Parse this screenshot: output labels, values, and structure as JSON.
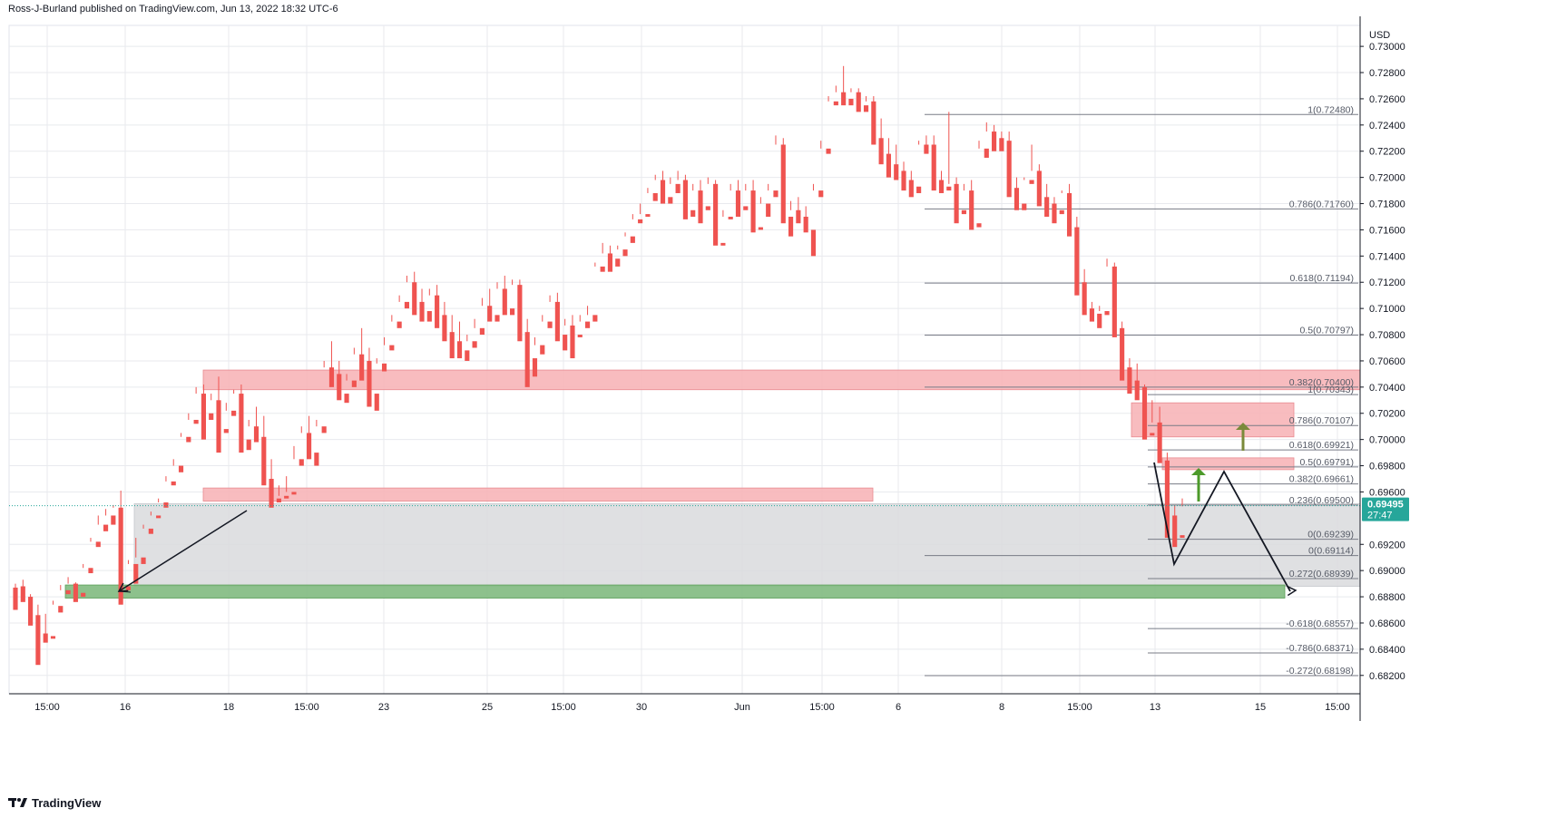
{
  "header": {
    "publisher": "Ross-J-Burland published on TradingView.com, Jun 13, 2022 18:32 UTC-6"
  },
  "footer": {
    "brand": "TradingView",
    "logo_icon": "tradingview-logo-icon"
  },
  "colors": {
    "up": "#26a69a",
    "down": "#ef5350",
    "zone_red": "#f7b5b8",
    "zone_green": "#81ba7f",
    "zone_grey": "#d9dadd",
    "fib_line": "#787b86",
    "price_label_bg": "#26a69a",
    "arrow_green": "#4c9a2a"
  },
  "chart_data": {
    "type": "candlestick",
    "symbol_currency": "USD",
    "title": "",
    "ylim": [
      0.6806,
      0.7316
    ],
    "yticks": [
      "0.73000",
      "0.72800",
      "0.72600",
      "0.72400",
      "0.72200",
      "0.72000",
      "0.71800",
      "0.71600",
      "0.71400",
      "0.71200",
      "0.71000",
      "0.70800",
      "0.70600",
      "0.70400",
      "0.70200",
      "0.70000",
      "0.69800",
      "0.69600",
      "0.69200",
      "0.69000",
      "0.68800",
      "0.68600",
      "0.68400",
      "0.68200"
    ],
    "xticks": [
      "15:00",
      "16",
      "18",
      "15:00",
      "23",
      "25",
      "15:00",
      "30",
      "Jun",
      "15:00",
      "6",
      "8",
      "15:00",
      "13",
      "15",
      "15:00"
    ],
    "current_price": {
      "price": "0.69495",
      "countdown": "27:47"
    },
    "fib_levels": [
      {
        "label": "1(0.72480)",
        "price": 0.7248
      },
      {
        "label": "0.786(0.71760)",
        "price": 0.7176
      },
      {
        "label": "0.618(0.71194)",
        "price": 0.71194
      },
      {
        "label": "0.5(0.70797)",
        "price": 0.70797
      },
      {
        "label": "0.382(0.70400)",
        "price": 0.704
      },
      {
        "label": "1(0.70343)",
        "price": 0.70343
      },
      {
        "label": "0.786(0.70107)",
        "price": 0.70107
      },
      {
        "label": "0.618(0.69921)",
        "price": 0.69921
      },
      {
        "label": "0.5(0.69791)",
        "price": 0.69791
      },
      {
        "label": "0.382(0.69661)",
        "price": 0.69661
      },
      {
        "label": "0.236(0.69500)",
        "price": 0.695
      },
      {
        "label": "0(0.69239)",
        "price": 0.69239
      },
      {
        "label": "0(0.69114)",
        "price": 0.69114
      },
      {
        "label": "0.272(0.68939)",
        "price": 0.68939
      },
      {
        "label": "-0.618(0.68557)",
        "price": 0.68557
      },
      {
        "label": "-0.786(0.68371)",
        "price": 0.68371
      },
      {
        "label": "-0.272(0.68198)",
        "price": 0.68198
      }
    ],
    "zones": [
      {
        "kind": "resistance",
        "top": 0.7053,
        "bottom": 0.7038
      },
      {
        "kind": "support",
        "top": 0.6963,
        "bottom": 0.6953
      },
      {
        "kind": "range",
        "top": 0.6951,
        "bottom": 0.6888
      },
      {
        "kind": "support-strong",
        "top": 0.6889,
        "bottom": 0.6879
      },
      {
        "kind": "resistance-upper",
        "top": 0.7028,
        "bottom": 0.7002
      },
      {
        "kind": "resistance-lower",
        "top": 0.6986,
        "bottom": 0.6977
      }
    ],
    "candles": [
      [
        0.6887,
        0.689,
        0.6872,
        0.687
      ],
      [
        0.6888,
        0.6893,
        0.6878,
        0.6876
      ],
      [
        0.688,
        0.6882,
        0.6866,
        0.6858
      ],
      [
        0.6866,
        0.6874,
        0.6852,
        0.6828
      ],
      [
        0.6852,
        0.6867,
        0.685,
        0.6845
      ],
      [
        0.685,
        0.6877,
        0.6874,
        0.6848
      ],
      [
        0.6873,
        0.6889,
        0.6885,
        0.6868
      ],
      [
        0.6885,
        0.6895,
        0.689,
        0.6882
      ],
      [
        0.689,
        0.6891,
        0.6883,
        0.6876
      ],
      [
        0.6883,
        0.6905,
        0.6902,
        0.688
      ],
      [
        0.6902,
        0.6925,
        0.6922,
        0.6898
      ],
      [
        0.6922,
        0.6942,
        0.6935,
        0.6918
      ],
      [
        0.6935,
        0.6947,
        0.6942,
        0.693
      ],
      [
        0.6942,
        0.695,
        0.6948,
        0.6935
      ],
      [
        0.6948,
        0.6961,
        0.6888,
        0.6874
      ],
      [
        0.6888,
        0.6908,
        0.6905,
        0.6885
      ],
      [
        0.6905,
        0.6925,
        0.691,
        0.689
      ],
      [
        0.691,
        0.6935,
        0.6932,
        0.6905
      ],
      [
        0.6932,
        0.6945,
        0.6942,
        0.6928
      ],
      [
        0.6942,
        0.6955,
        0.6952,
        0.694
      ],
      [
        0.6952,
        0.6972,
        0.6968,
        0.6948
      ],
      [
        0.6968,
        0.6985,
        0.698,
        0.6965
      ],
      [
        0.698,
        0.7005,
        0.7002,
        0.6975
      ],
      [
        0.7002,
        0.702,
        0.7015,
        0.6998
      ],
      [
        0.7015,
        0.704,
        0.7035,
        0.7012
      ],
      [
        0.7035,
        0.7042,
        0.702,
        0.7
      ],
      [
        0.702,
        0.7035,
        0.703,
        0.7015
      ],
      [
        0.703,
        0.7048,
        0.7008,
        0.699
      ],
      [
        0.7008,
        0.7028,
        0.7022,
        0.7005
      ],
      [
        0.7022,
        0.7038,
        0.7035,
        0.7018
      ],
      [
        0.7035,
        0.7042,
        0.7,
        0.699
      ],
      [
        0.7,
        0.7015,
        0.701,
        0.6992
      ],
      [
        0.701,
        0.7025,
        0.7002,
        0.6998
      ],
      [
        0.7002,
        0.7018,
        0.697,
        0.6965
      ],
      [
        0.697,
        0.6985,
        0.6955,
        0.6948
      ],
      [
        0.6955,
        0.6965,
        0.6957,
        0.6952
      ],
      [
        0.6957,
        0.6972,
        0.696,
        0.6955
      ],
      [
        0.696,
        0.6995,
        0.6985,
        0.6958
      ],
      [
        0.6985,
        0.701,
        0.7005,
        0.698
      ],
      [
        0.7005,
        0.7018,
        0.699,
        0.6985
      ],
      [
        0.699,
        0.7015,
        0.701,
        0.698
      ],
      [
        0.701,
        0.706,
        0.7055,
        0.7005
      ],
      [
        0.7055,
        0.7075,
        0.705,
        0.704
      ],
      [
        0.705,
        0.706,
        0.7035,
        0.703
      ],
      [
        0.7035,
        0.705,
        0.7045,
        0.7028
      ],
      [
        0.7045,
        0.707,
        0.7065,
        0.704
      ],
      [
        0.7065,
        0.7085,
        0.706,
        0.7045
      ],
      [
        0.706,
        0.707,
        0.7035,
        0.7025
      ],
      [
        0.7035,
        0.7062,
        0.7058,
        0.7022
      ],
      [
        0.7058,
        0.7078,
        0.7072,
        0.7052
      ],
      [
        0.7072,
        0.7095,
        0.709,
        0.7068
      ],
      [
        0.709,
        0.711,
        0.7105,
        0.7085
      ],
      [
        0.7105,
        0.7125,
        0.712,
        0.71
      ],
      [
        0.712,
        0.7128,
        0.7105,
        0.7095
      ],
      [
        0.7105,
        0.7115,
        0.7098,
        0.709
      ],
      [
        0.7098,
        0.7115,
        0.711,
        0.709
      ],
      [
        0.711,
        0.7118,
        0.7095,
        0.7085
      ],
      [
        0.7095,
        0.7105,
        0.7082,
        0.7075
      ],
      [
        0.7082,
        0.7095,
        0.7075,
        0.7062
      ],
      [
        0.7075,
        0.709,
        0.7068,
        0.7062
      ],
      [
        0.7068,
        0.708,
        0.7075,
        0.706
      ],
      [
        0.7075,
        0.7092,
        0.7085,
        0.707
      ],
      [
        0.7085,
        0.7108,
        0.7102,
        0.708
      ],
      [
        0.7102,
        0.7115,
        0.7095,
        0.709
      ],
      [
        0.7095,
        0.712,
        0.7115,
        0.709
      ],
      [
        0.7115,
        0.7125,
        0.71,
        0.7095
      ],
      [
        0.71,
        0.7122,
        0.7118,
        0.7095
      ],
      [
        0.7118,
        0.7122,
        0.7082,
        0.7075
      ],
      [
        0.7082,
        0.7092,
        0.7062,
        0.704
      ],
      [
        0.7062,
        0.7078,
        0.7072,
        0.7048
      ],
      [
        0.7072,
        0.7095,
        0.709,
        0.7065
      ],
      [
        0.709,
        0.711,
        0.7105,
        0.7085
      ],
      [
        0.7105,
        0.7112,
        0.708,
        0.7075
      ],
      [
        0.708,
        0.7092,
        0.7087,
        0.7068
      ],
      [
        0.7087,
        0.7095,
        0.708,
        0.7062
      ],
      [
        0.708,
        0.7095,
        0.709,
        0.7078
      ],
      [
        0.709,
        0.7102,
        0.7095,
        0.7085
      ],
      [
        0.7095,
        0.7135,
        0.7132,
        0.709
      ],
      [
        0.7132,
        0.715,
        0.7142,
        0.7128
      ],
      [
        0.7142,
        0.7148,
        0.7138,
        0.7128
      ],
      [
        0.7138,
        0.7148,
        0.7145,
        0.7132
      ],
      [
        0.7145,
        0.7158,
        0.7155,
        0.714
      ],
      [
        0.7155,
        0.7172,
        0.7168,
        0.715
      ],
      [
        0.7168,
        0.718,
        0.7172,
        0.7165
      ],
      [
        0.7172,
        0.7192,
        0.7188,
        0.717
      ],
      [
        0.7188,
        0.7202,
        0.7198,
        0.7182
      ],
      [
        0.7198,
        0.7205,
        0.7185,
        0.718
      ],
      [
        0.7185,
        0.72,
        0.7195,
        0.718
      ],
      [
        0.7195,
        0.7205,
        0.7198,
        0.7188
      ],
      [
        0.7198,
        0.7202,
        0.7175,
        0.7168
      ],
      [
        0.7175,
        0.7195,
        0.719,
        0.717
      ],
      [
        0.719,
        0.7198,
        0.7178,
        0.7165
      ],
      [
        0.7178,
        0.72,
        0.7195,
        0.7175
      ],
      [
        0.7195,
        0.7198,
        0.715,
        0.7148
      ],
      [
        0.715,
        0.7175,
        0.717,
        0.7148
      ],
      [
        0.717,
        0.7195,
        0.719,
        0.7168
      ],
      [
        0.719,
        0.7198,
        0.7178,
        0.717
      ],
      [
        0.7178,
        0.7195,
        0.719,
        0.7175
      ],
      [
        0.719,
        0.7198,
        0.7162,
        0.7158
      ],
      [
        0.7162,
        0.7185,
        0.718,
        0.716
      ],
      [
        0.718,
        0.7195,
        0.719,
        0.717
      ],
      [
        0.719,
        0.7232,
        0.7225,
        0.7185
      ],
      [
        0.7225,
        0.723,
        0.717,
        0.7165
      ],
      [
        0.717,
        0.7182,
        0.7175,
        0.7155
      ],
      [
        0.7175,
        0.7185,
        0.717,
        0.7165
      ],
      [
        0.717,
        0.7178,
        0.716,
        0.7158
      ],
      [
        0.716,
        0.7195,
        0.719,
        0.714
      ],
      [
        0.719,
        0.7228,
        0.7222,
        0.7185
      ],
      [
        0.7222,
        0.7262,
        0.7258,
        0.7218
      ],
      [
        0.7258,
        0.727,
        0.7265,
        0.7255
      ],
      [
        0.7265,
        0.7285,
        0.726,
        0.7255
      ],
      [
        0.726,
        0.7268,
        0.7265,
        0.7255
      ],
      [
        0.7265,
        0.7268,
        0.7255,
        0.725
      ],
      [
        0.7255,
        0.7262,
        0.7258,
        0.725
      ],
      [
        0.7258,
        0.7262,
        0.723,
        0.7225
      ],
      [
        0.723,
        0.7245,
        0.7218,
        0.721
      ],
      [
        0.7218,
        0.723,
        0.721,
        0.72
      ],
      [
        0.721,
        0.7225,
        0.7205,
        0.7198
      ],
      [
        0.7205,
        0.7212,
        0.7198,
        0.719
      ],
      [
        0.7198,
        0.7205,
        0.7193,
        0.7185
      ],
      [
        0.7193,
        0.7228,
        0.7225,
        0.7188
      ],
      [
        0.7225,
        0.7232,
        0.7225,
        0.7218
      ],
      [
        0.7225,
        0.7232,
        0.7198,
        0.719
      ],
      [
        0.7198,
        0.7205,
        0.7193,
        0.7188
      ],
      [
        0.7193,
        0.725,
        0.7195,
        0.719
      ],
      [
        0.7195,
        0.72,
        0.7175,
        0.7165
      ],
      [
        0.7175,
        0.7195,
        0.719,
        0.7172
      ],
      [
        0.719,
        0.7198,
        0.7165,
        0.716
      ],
      [
        0.7165,
        0.7228,
        0.7222,
        0.7162
      ],
      [
        0.7222,
        0.7242,
        0.7235,
        0.7215
      ],
      [
        0.7235,
        0.724,
        0.723,
        0.722
      ],
      [
        0.723,
        0.7235,
        0.7228,
        0.722
      ],
      [
        0.7228,
        0.7235,
        0.7192,
        0.7185
      ],
      [
        0.7192,
        0.72,
        0.718,
        0.7175
      ],
      [
        0.718,
        0.72,
        0.7198,
        0.7175
      ],
      [
        0.7198,
        0.7225,
        0.7205,
        0.7195
      ],
      [
        0.7205,
        0.721,
        0.7185,
        0.7178
      ],
      [
        0.7185,
        0.7195,
        0.718,
        0.717
      ],
      [
        0.718,
        0.7185,
        0.7175,
        0.7165
      ],
      [
        0.7175,
        0.719,
        0.7188,
        0.7172
      ],
      [
        0.7188,
        0.7195,
        0.7162,
        0.7155
      ],
      [
        0.7162,
        0.717,
        0.712,
        0.711
      ],
      [
        0.712,
        0.713,
        0.71,
        0.7095
      ],
      [
        0.71,
        0.7105,
        0.7096,
        0.709
      ],
      [
        0.7096,
        0.7102,
        0.7098,
        0.7085
      ],
      [
        0.7098,
        0.7138,
        0.7132,
        0.7095
      ],
      [
        0.7132,
        0.7135,
        0.7085,
        0.7078
      ],
      [
        0.7085,
        0.709,
        0.7055,
        0.7045
      ],
      [
        0.7055,
        0.7062,
        0.7045,
        0.7035
      ],
      [
        0.7045,
        0.7058,
        0.704,
        0.703
      ],
      [
        0.704,
        0.7042,
        0.7005,
        0.7
      ],
      [
        0.7005,
        0.703,
        0.7013,
        0.7003
      ],
      [
        0.7013,
        0.7025,
        0.6984,
        0.6982
      ],
      [
        0.6984,
        0.699,
        0.6942,
        0.6925
      ],
      [
        0.6942,
        0.695,
        0.6927,
        0.6918
      ],
      [
        0.6927,
        0.6955,
        0.6949,
        0.6925
      ]
    ],
    "annotations": {
      "arrows": [
        "black-arrow-16-to-18",
        "black-zigzag-projection",
        "green-up-arrows",
        "brown-up-arrow"
      ]
    }
  }
}
